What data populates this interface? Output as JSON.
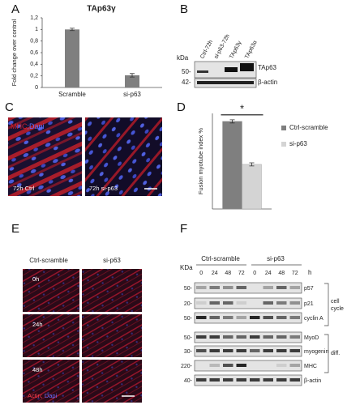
{
  "panel_labels": [
    "A",
    "B",
    "C",
    "D",
    "E",
    "F"
  ],
  "chart_data": [
    {
      "type": "bar",
      "title": "TAp63γ",
      "y_label": "Fold change over control",
      "categories": [
        "Scramble",
        "si-p63"
      ],
      "values": [
        1.0,
        0.21
      ],
      "errors": [
        0.02,
        0.03
      ],
      "color": "#7f7f7f",
      "ylim": [
        0,
        1.2
      ],
      "yticks": [
        0,
        {
          "value": 0.2,
          "label": "0,2"
        },
        {
          "value": 0.4,
          "label": "0,4"
        },
        {
          "value": 0.6,
          "label": "0,6"
        },
        {
          "value": 0.8,
          "label": "0,8"
        },
        1,
        {
          "value": 1.2,
          "label": "1,2"
        }
      ]
    },
    {
      "type": "grouped-bar",
      "y_label": "Fusion myotube index %",
      "annotation": "*",
      "series": [
        {
          "name": "Ctrl-scramble",
          "color": "#7f7f7f",
          "values": [
            55
          ],
          "errors": [
            1
          ]
        },
        {
          "name": "si-p63",
          "color": "#d4d4d4",
          "values": [
            28
          ],
          "errors": [
            1
          ]
        }
      ],
      "ylim": [
        0,
        60
      ],
      "legend": "upper right"
    }
  ],
  "blot_b": {
    "unit": "kDa",
    "markers": [
      "50-",
      "42-"
    ],
    "lanes": [
      "Ctrl-72h",
      "si-p63-72h",
      "TAp63γ",
      "TAp63α"
    ],
    "bands": [
      "TAp63",
      "β-actin"
    ]
  },
  "panel_c": {
    "stain_red": "MHC",
    "stain_blue": ";Dapi",
    "images": [
      "72h Ctrl",
      "72h si-p63"
    ]
  },
  "panel_e": {
    "columns": [
      "Ctrl-scramble",
      "si-p63"
    ],
    "rows": [
      "0h",
      "24h",
      "48h"
    ],
    "stain_red": "Actin;",
    "stain_blue": " Dapi"
  },
  "panel_f": {
    "unit": "KDa",
    "groups": [
      "Ctrl-scramble",
      "si-p63"
    ],
    "times": [
      "0",
      "24",
      "48",
      "72",
      "0",
      "24",
      "48",
      "72"
    ],
    "time_unit": "h",
    "markers": [
      "50-",
      "20-",
      "50-",
      "50-",
      "30-",
      "220-",
      "40-"
    ],
    "proteins": [
      "p57",
      "p21",
      "cyclin A",
      "MyoD",
      "myogenin",
      "MHC",
      "β-actin"
    ],
    "bracket_cell": [
      "cell",
      "cycle"
    ],
    "bracket_diff": "diff."
  }
}
